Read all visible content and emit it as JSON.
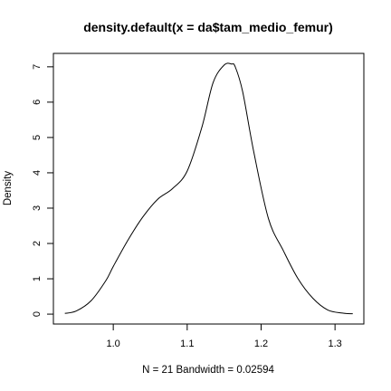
{
  "chart_data": {
    "type": "line",
    "title": "density.default(x = da$tam_medio_femur)",
    "xlabel": "N = 21   Bandwidth = 0.02594",
    "ylabel": "Density",
    "xlim": [
      0.919,
      1.339
    ],
    "ylim": [
      -0.28,
      7.38
    ],
    "x_ticks": [
      1.0,
      1.1,
      1.2,
      1.3
    ],
    "x_tick_labels": [
      "1.0",
      "1.1",
      "1.2",
      "1.3"
    ],
    "y_ticks": [
      0,
      1,
      2,
      3,
      4,
      5,
      6,
      7
    ],
    "y_tick_labels": [
      "0",
      "1",
      "2",
      "3",
      "4",
      "5",
      "6",
      "7"
    ],
    "grid": false,
    "series": [
      {
        "x": [
          0.9345,
          0.95,
          0.97,
          0.99,
          1.0,
          1.02,
          1.04,
          1.06,
          1.08,
          1.1,
          1.12,
          1.135,
          1.15,
          1.16,
          1.165,
          1.175,
          1.19,
          1.21,
          1.23,
          1.25,
          1.27,
          1.29,
          1.31,
          1.324
        ],
        "y": [
          0.02,
          0.09,
          0.38,
          0.95,
          1.35,
          2.1,
          2.75,
          3.25,
          3.55,
          4.05,
          5.3,
          6.55,
          7.05,
          7.08,
          7.0,
          6.3,
          4.6,
          2.7,
          1.8,
          1.0,
          0.45,
          0.12,
          0.03,
          0.01
        ]
      }
    ]
  }
}
